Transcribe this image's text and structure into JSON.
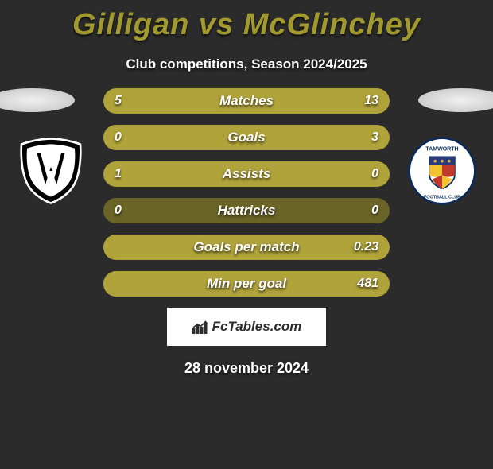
{
  "title": "Gilligan vs McGlinchey",
  "subtitle": "Club competitions, Season 2024/2025",
  "date": "28 november 2024",
  "brand": "FcTables.com",
  "colors": {
    "background": "#2b2b2b",
    "title": "#a39a2f",
    "bar_track": "#6b6427",
    "bar_fill": "#b0a33a",
    "text": "#ffffff"
  },
  "bars": [
    {
      "label": "Matches",
      "left": "5",
      "right": "13",
      "left_pct": 27.8,
      "right_pct": 72.2
    },
    {
      "label": "Goals",
      "left": "0",
      "right": "3",
      "left_pct": 0,
      "right_pct": 100
    },
    {
      "label": "Assists",
      "left": "1",
      "right": "0",
      "left_pct": 100,
      "right_pct": 0
    },
    {
      "label": "Hattricks",
      "left": "0",
      "right": "0",
      "left_pct": 0,
      "right_pct": 0
    },
    {
      "label": "Goals per match",
      "left": "",
      "right": "0.23",
      "left_pct": 0,
      "right_pct": 100
    },
    {
      "label": "Min per goal",
      "left": "",
      "right": "481",
      "left_pct": 0,
      "right_pct": 100
    }
  ],
  "left_club": {
    "name": "Academico Viseu",
    "badge_bg": "#000000",
    "badge_fg": "#ffffff"
  },
  "right_club": {
    "name": "Tamworth Football Club"
  }
}
